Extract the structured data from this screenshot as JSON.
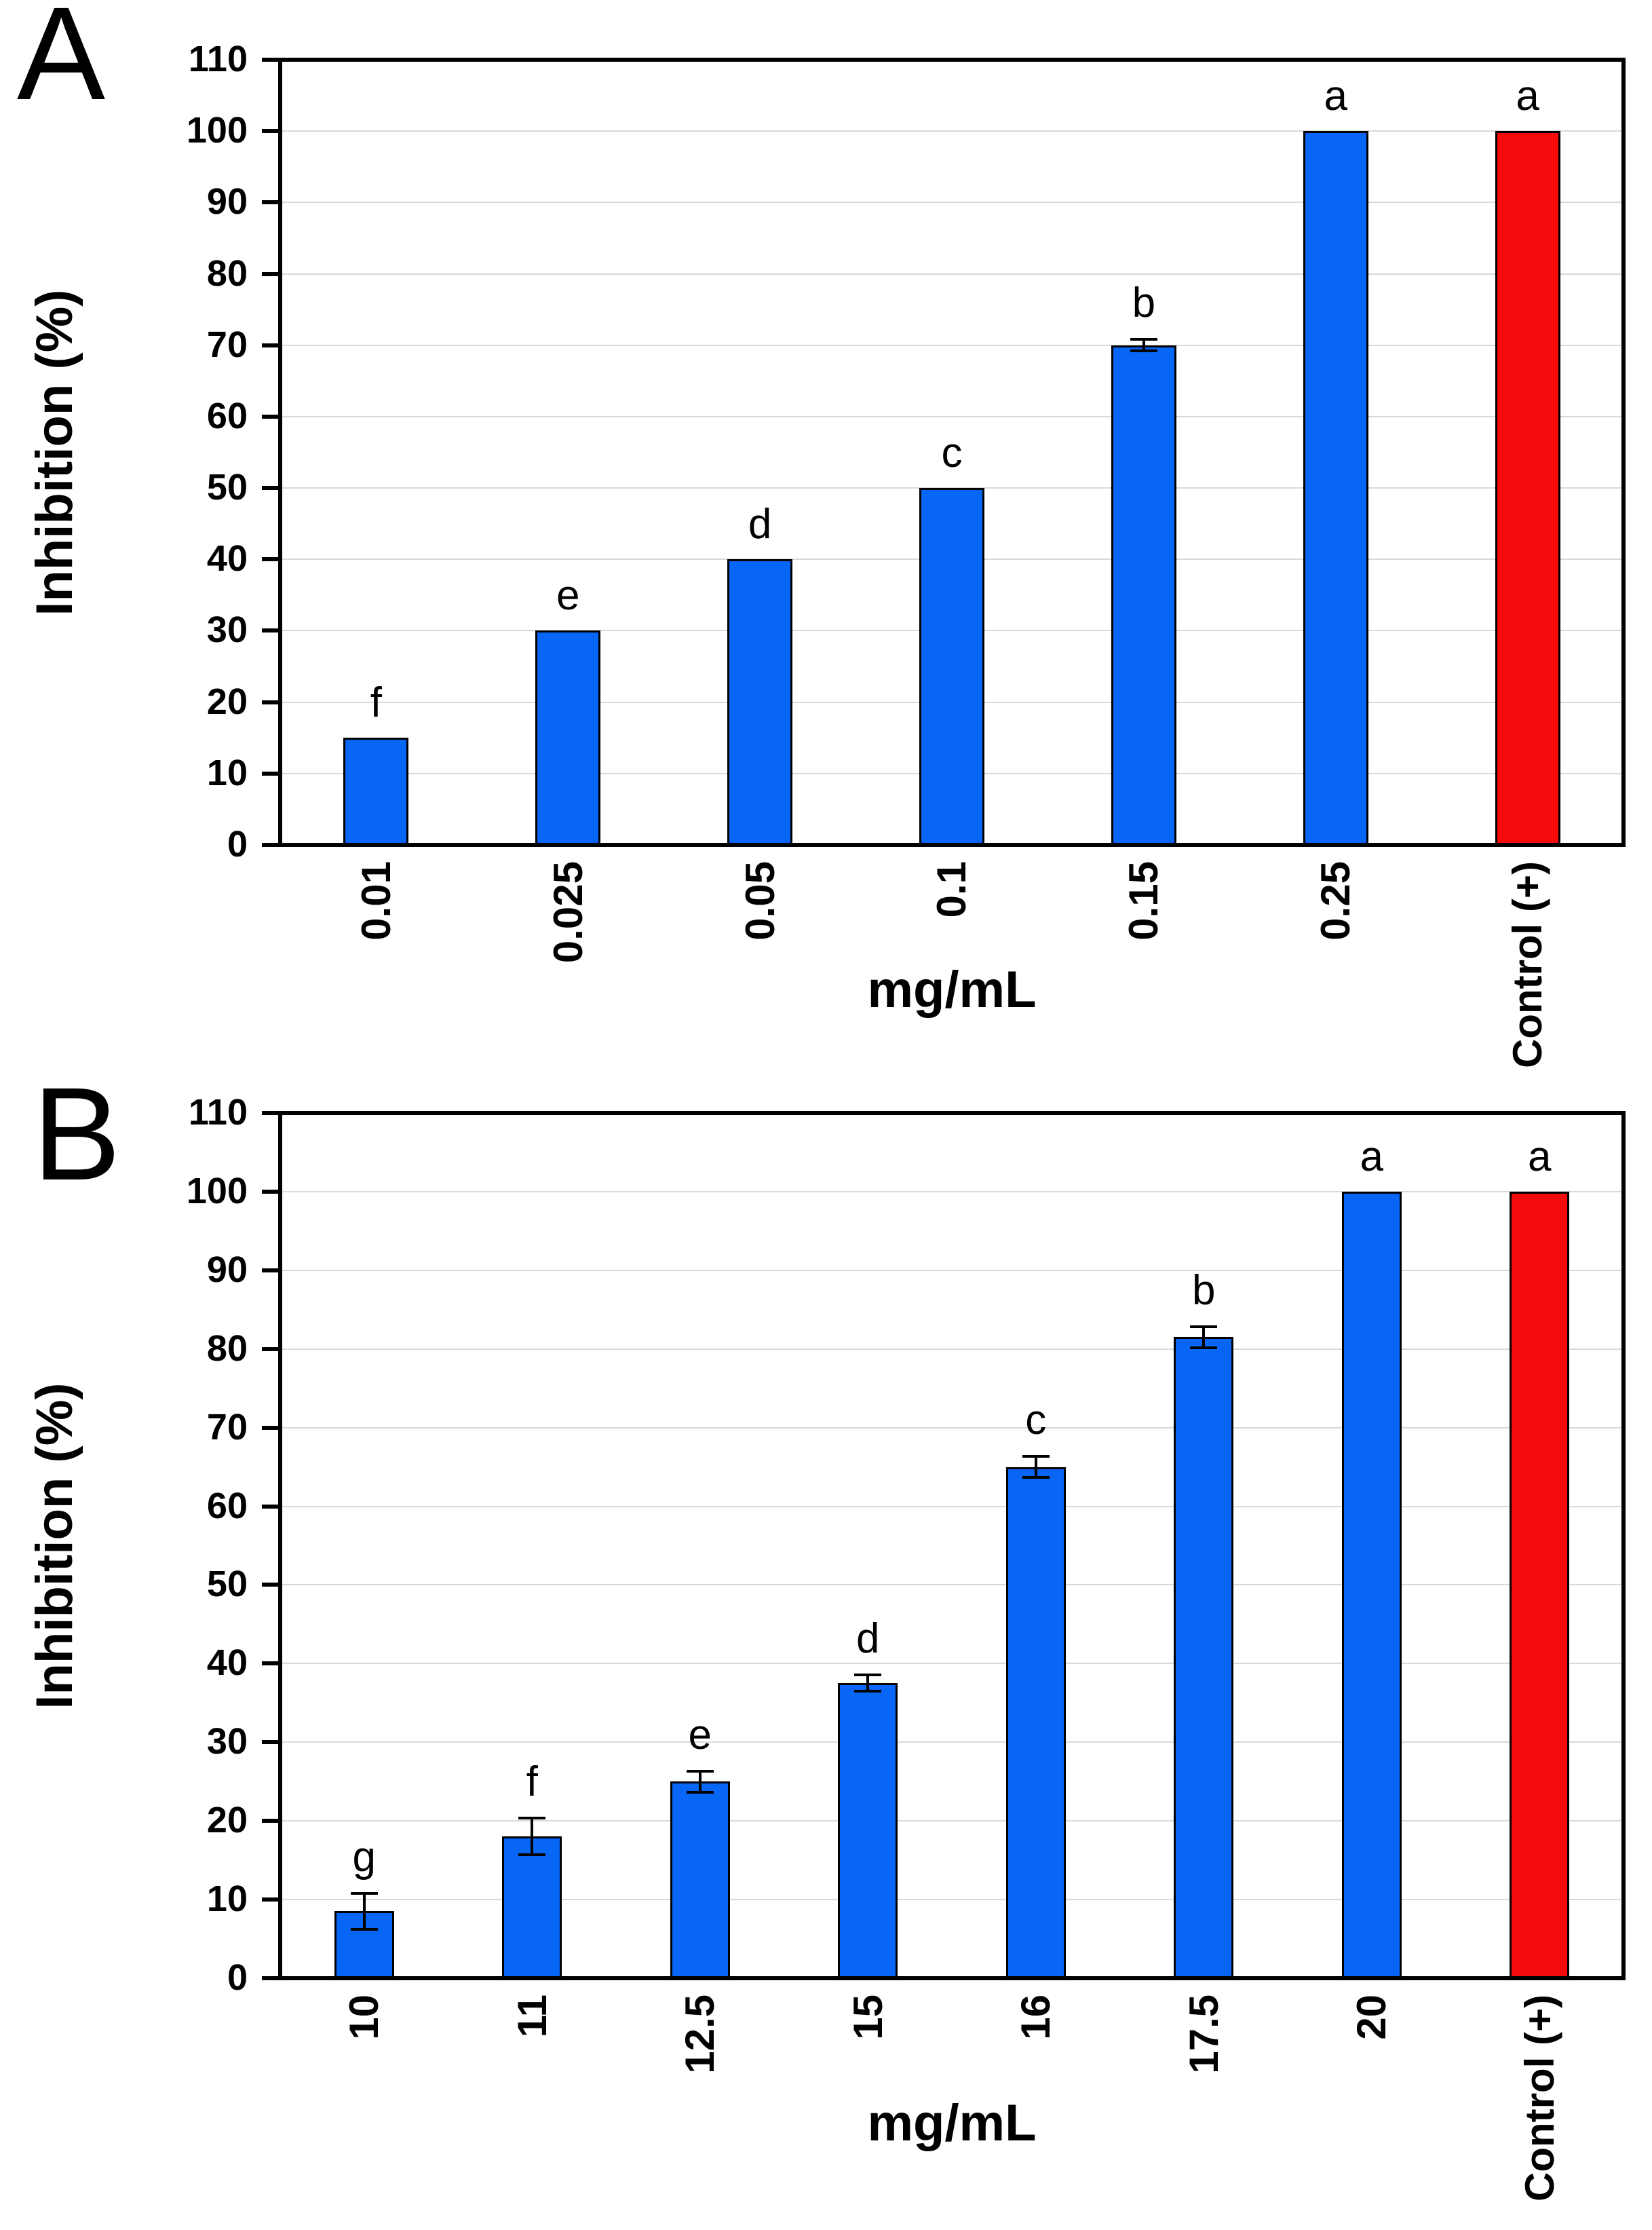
{
  "styles": {
    "bar_blue": "#0866F6",
    "bar_red": "#F50B0B",
    "bar_border": "#000000",
    "grid_color": "#D9D9D9",
    "axis_color": "#000000",
    "background": "#FFFFFF"
  },
  "chart_data": [
    {
      "panel": "A",
      "type": "bar",
      "title": "",
      "xlabel": "mg/mL",
      "ylabel": "Inhibition (%)",
      "ylim": [
        0,
        110
      ],
      "ytick_step": 10,
      "grid": true,
      "legend": false,
      "categories": [
        "0.01",
        "0.025",
        "0.05",
        "0.1",
        "0.15",
        "0.25",
        "Control (+)"
      ],
      "values": [
        15,
        30,
        40,
        50,
        70,
        100,
        100
      ],
      "errors": [
        0,
        0,
        0,
        0,
        1,
        0,
        0
      ],
      "sig_letters": [
        "f",
        "e",
        "d",
        "c",
        "b",
        "a",
        "a"
      ],
      "bar_colors": [
        "#0866F6",
        "#0866F6",
        "#0866F6",
        "#0866F6",
        "#0866F6",
        "#0866F6",
        "#F50B0B"
      ]
    },
    {
      "panel": "B",
      "type": "bar",
      "title": "",
      "xlabel": "mg/mL",
      "ylabel": "Inhibition (%)",
      "ylim": [
        0,
        110
      ],
      "ytick_step": 10,
      "grid": true,
      "legend": false,
      "categories": [
        "10",
        "11",
        "12.5",
        "15",
        "16",
        "17.5",
        "20",
        "Control (+)"
      ],
      "values": [
        8.5,
        18,
        25,
        37.5,
        65,
        81.5,
        100,
        100
      ],
      "errors": [
        2.5,
        2.5,
        1.5,
        1.2,
        1.5,
        1.5,
        0,
        0
      ],
      "sig_letters": [
        "g",
        "f",
        "e",
        "d",
        "c",
        "b",
        "a",
        "a"
      ],
      "bar_colors": [
        "#0866F6",
        "#0866F6",
        "#0866F6",
        "#0866F6",
        "#0866F6",
        "#0866F6",
        "#0866F6",
        "#F50B0B"
      ]
    }
  ]
}
